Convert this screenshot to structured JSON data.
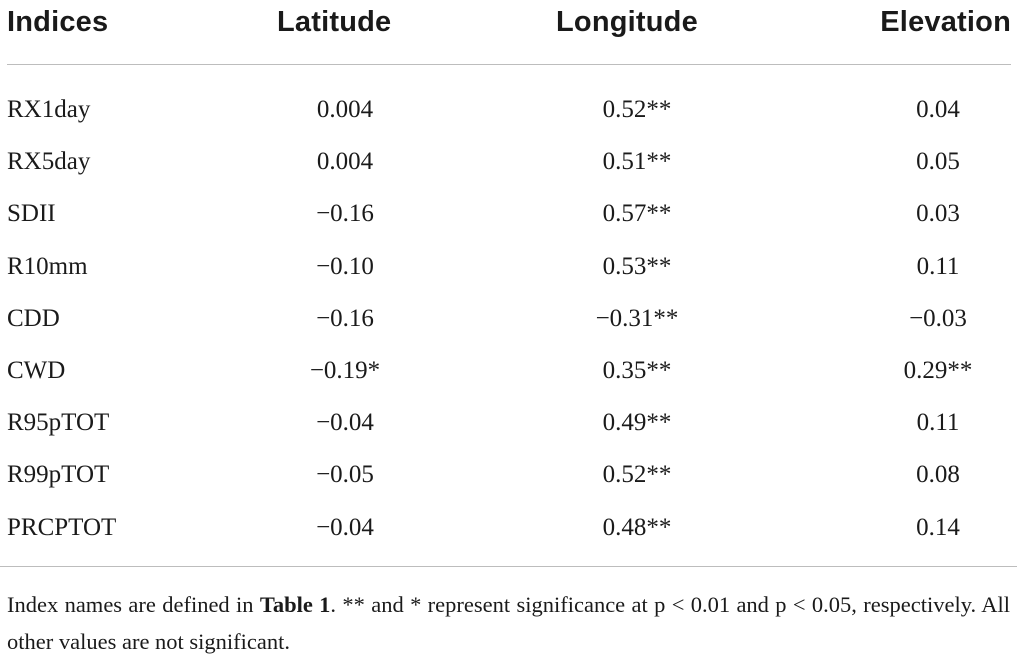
{
  "table": {
    "headers": [
      "Indices",
      "Latitude",
      "Longitude",
      "Elevation"
    ],
    "rows": [
      {
        "index": "RX1day",
        "latitude": "0.004",
        "longitude": "0.52**",
        "elevation": "0.04"
      },
      {
        "index": "RX5day",
        "latitude": "0.004",
        "longitude": "0.51**",
        "elevation": "0.05"
      },
      {
        "index": "SDII",
        "latitude": "−0.16",
        "longitude": "0.57**",
        "elevation": "0.03"
      },
      {
        "index": "R10mm",
        "latitude": "−0.10",
        "longitude": "0.53**",
        "elevation": "0.11"
      },
      {
        "index": "CDD",
        "latitude": "−0.16",
        "longitude": "−0.31**",
        "elevation": "−0.03"
      },
      {
        "index": "CWD",
        "latitude": "−0.19*",
        "longitude": "0.35**",
        "elevation": "0.29**"
      },
      {
        "index": "R95pTOT",
        "latitude": "−0.04",
        "longitude": "0.49**",
        "elevation": "0.11"
      },
      {
        "index": "R99pTOT",
        "latitude": "−0.05",
        "longitude": "0.52**",
        "elevation": "0.08"
      },
      {
        "index": "PRCPTOT",
        "latitude": "−0.04",
        "longitude": "0.48**",
        "elevation": "0.14"
      }
    ]
  },
  "footnote": {
    "prefix": "Index names are defined in ",
    "table_ref": "Table 1",
    "suffix": ". ** and * represent significance at p < 0.01 and p < 0.05, respectively. All other values are not significant."
  }
}
